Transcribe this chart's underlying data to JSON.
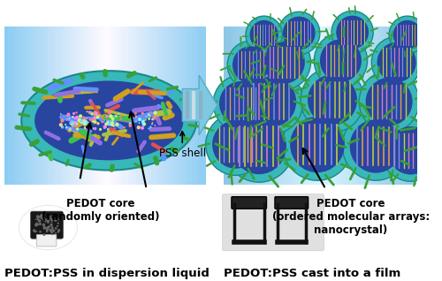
{
  "title_left": "PEDOT:PSS in dispersion liquid",
  "title_right": "PEDOT:PSS cast into a film",
  "label_pss": "PSS shell",
  "label_pedot_left_line1": "PEDOT core",
  "label_pedot_left_line2": "(randomly oriented)",
  "label_pedot_right_line1": "PEDOT core",
  "label_pedot_right_line2": "(ordered molecular arrays:",
  "label_pedot_right_line3": "nanocrystal)",
  "bg_color": "#ffffff",
  "title_fontsize": 9.5,
  "label_fontsize": 8.5,
  "fig_width": 5.0,
  "fig_height": 3.18,
  "dpi": 100
}
